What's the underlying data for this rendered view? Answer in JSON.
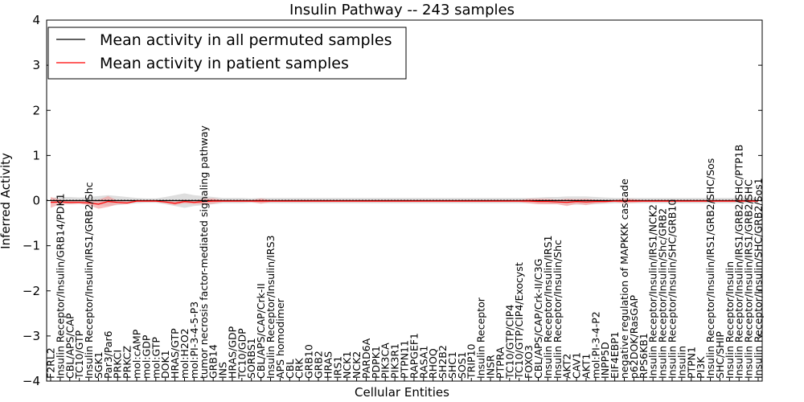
{
  "chart_data": {
    "type": "line",
    "title": "Insulin Pathway -- 243 samples",
    "xlabel": "Cellular Entities",
    "ylabel": "Inferred Activity",
    "ylim": [
      -4,
      4
    ],
    "yticks": [
      4,
      3,
      2,
      1,
      0,
      -1,
      -2,
      -3,
      -4
    ],
    "ytick_labels": [
      "4",
      "3",
      "2",
      "1",
      "0",
      "−1",
      "−2",
      "−3",
      "−4"
    ],
    "legend_position": "upper-left",
    "colors": {
      "all_permuted": "#000000",
      "patient": "#ff0000",
      "band": "#d3d3d3",
      "patient_band": "#f4a3a3"
    },
    "categories": [
      "F2RL2",
      "Insulin Receptor/Insulin/GRB14/PDK1",
      "CBL/APS/CAP",
      "TC10/GTP",
      "Insulin Receptor/Insulin/IRS1/GRB2/Shc",
      "SGK1",
      "Par3/Par6",
      "PRKCI",
      "PRKCZ",
      "mol:cAMP",
      "mol:GDP",
      "mol:GTP",
      "DOK1",
      "HRAS/GTP",
      "mol:H2O2",
      "mol:PI-3-4-5-P3",
      "tumor necrosis factor-mediated signaling pathway",
      "GRB14",
      "INS",
      "HRAS/GDP",
      "TC10/GDP",
      "SORBS1",
      "CBL/APS/CAP/Crk-II",
      "Insulin Receptor/Insulin/IRS3",
      "APS homodimer",
      "CBL",
      "CRK",
      "GRB10",
      "GRB2",
      "HRAS",
      "IRS1",
      "NCK1",
      "NCK2",
      "PARD6A",
      "PDPK1",
      "PIK3CA",
      "PIK3R1",
      "PTPN11",
      "RAPGEF1",
      "RASA1",
      "RHOQ",
      "SH2B2",
      "SHC1",
      "SOS1",
      "TRIP10",
      "Insulin Receptor",
      "INSR",
      "PTPRA",
      "TC10/GTP/CIP4",
      "TC10/GTP/CIP4/Exocyst",
      "FOXO3",
      "CBL/APS/CAP/Crk-II/C3G",
      "Insulin Receptor/Insulin/IRS1",
      "Insulin Receptor/Insulin/Shc",
      "AKT2",
      "CAV1",
      "AKT1",
      "mol:PI-3-4-P2",
      "INPP5D",
      "EIF4EBP1",
      "negative regulation of MAPKKK cascade",
      "p62DOK/RasGAP",
      "RPS6KB1",
      "Insulin Receptor/Insulin/IRS1/NCK2",
      "Insulin Receptor/Insulin/Shc/GRB2",
      "Insulin Receptor/Insulin/SHC/GRB10",
      "Insulin",
      "PTPN1",
      "PI3K",
      "Insulin Receptor/Insulin/IRS1/GRB2/SHC/Sos",
      "SHC/SHIP",
      "Insulin Receptor/Insulin",
      "Insulin Receptor/Insulin/IRS1/GRB2/SHC/PTP1B",
      "Insulin Receptor/Insulin/IRS1/GRB2/SHC",
      "Insulin Receptor/Insulin/SHC/GRB2/Sos1"
    ],
    "series": [
      {
        "name": "Mean activity in all permuted samples",
        "color": "#000000",
        "values": [
          0,
          0,
          0,
          0,
          0,
          0,
          0,
          0,
          0,
          0,
          0,
          0,
          0,
          0,
          0,
          0,
          0,
          0,
          0,
          0,
          0,
          0,
          0,
          0,
          0,
          0,
          0,
          0,
          0,
          0,
          0,
          0,
          0,
          0,
          0,
          0,
          0,
          0,
          0,
          0,
          0,
          0,
          0,
          0,
          0,
          0,
          0,
          0,
          0,
          0,
          0,
          0,
          0,
          0,
          0,
          0,
          0,
          0,
          0,
          0,
          0,
          0,
          0,
          0,
          0,
          0,
          0,
          0,
          0,
          0,
          0,
          0,
          0,
          0,
          0
        ],
        "band": [
          0.06,
          0.08,
          0.08,
          0.07,
          0.08,
          0.1,
          0.12,
          0.1,
          0.08,
          0.06,
          0.05,
          0.05,
          0.08,
          0.12,
          0.16,
          0.12,
          0.1,
          0.08,
          0.06,
          0.06,
          0.06,
          0.05,
          0.06,
          0.06,
          0.06,
          0.06,
          0.06,
          0.06,
          0.06,
          0.06,
          0.06,
          0.06,
          0.06,
          0.06,
          0.06,
          0.06,
          0.06,
          0.06,
          0.06,
          0.06,
          0.06,
          0.06,
          0.06,
          0.06,
          0.06,
          0.06,
          0.06,
          0.06,
          0.06,
          0.06,
          0.06,
          0.07,
          0.08,
          0.08,
          0.09,
          0.09,
          0.09,
          0.08,
          0.07,
          0.06,
          0.06,
          0.06,
          0.06,
          0.06,
          0.06,
          0.06,
          0.06,
          0.06,
          0.06,
          0.06,
          0.06,
          0.06,
          0.06,
          0.06,
          0.06
        ]
      },
      {
        "name": "Mean activity in patient samples",
        "color": "#ff0000",
        "values": [
          -0.04,
          -0.03,
          -0.04,
          -0.04,
          -0.05,
          -0.08,
          -0.02,
          -0.04,
          -0.05,
          -0.01,
          -0.01,
          -0.01,
          -0.03,
          -0.06,
          -0.02,
          -0.04,
          -0.02,
          -0.01,
          -0.01,
          -0.01,
          -0.01,
          -0.01,
          -0.01,
          -0.01,
          -0.01,
          -0.01,
          -0.01,
          -0.01,
          -0.01,
          -0.01,
          -0.01,
          -0.01,
          -0.01,
          -0.01,
          -0.01,
          -0.01,
          -0.01,
          -0.01,
          -0.01,
          -0.01,
          -0.01,
          -0.01,
          -0.01,
          -0.01,
          -0.01,
          -0.01,
          -0.01,
          -0.01,
          -0.01,
          -0.01,
          -0.01,
          -0.02,
          -0.02,
          -0.03,
          -0.04,
          -0.02,
          -0.03,
          -0.02,
          -0.02,
          -0.01,
          -0.01,
          -0.01,
          -0.01,
          -0.01,
          -0.01,
          -0.01,
          -0.01,
          -0.01,
          -0.01,
          -0.01,
          -0.01,
          -0.01,
          -0.01,
          -0.01,
          -0.01
        ],
        "band": [
          0.12,
          0.05,
          0.04,
          0.03,
          0.05,
          0.1,
          0.12,
          0.04,
          0.03,
          0.02,
          0.02,
          0.02,
          0.03,
          0.04,
          0.04,
          0.04,
          0.06,
          0.06,
          0.02,
          0.02,
          0.02,
          0.02,
          0.06,
          0.02,
          0.02,
          0.02,
          0.02,
          0.02,
          0.02,
          0.02,
          0.02,
          0.02,
          0.02,
          0.02,
          0.02,
          0.02,
          0.02,
          0.02,
          0.02,
          0.02,
          0.02,
          0.02,
          0.02,
          0.02,
          0.02,
          0.02,
          0.02,
          0.02,
          0.02,
          0.02,
          0.05,
          0.06,
          0.06,
          0.05,
          0.08,
          0.05,
          0.07,
          0.04,
          0.03,
          0.02,
          0.05,
          0.04,
          0.02,
          0.02,
          0.02,
          0.02,
          0.02,
          0.02,
          0.02,
          0.02,
          0.02,
          0.02,
          0.02,
          0.02,
          0.02
        ]
      }
    ]
  }
}
